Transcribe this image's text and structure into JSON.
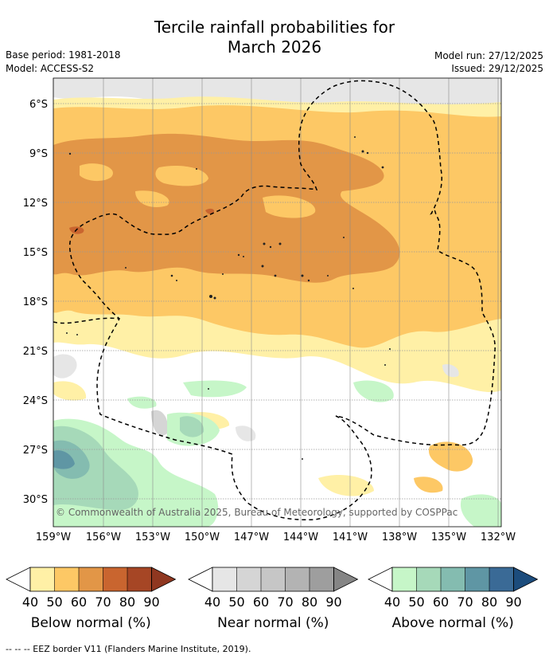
{
  "header": {
    "title_line1": "Tercile rainfall probabilities for",
    "title_line2": "March 2026",
    "base_period": "Base period: 1981-2018",
    "model": "Model: ACCESS-S2",
    "model_run": "Model run: 27/12/2025",
    "issued": "Issued: 29/12/2025"
  },
  "map": {
    "lat_labels": [
      "6°S",
      "9°S",
      "12°S",
      "15°S",
      "18°S",
      "21°S",
      "24°S",
      "27°S",
      "30°S"
    ],
    "lon_labels": [
      "159°W",
      "156°W",
      "153°W",
      "150°W",
      "147°W",
      "144°W",
      "141°W",
      "138°W",
      "135°W",
      "132°W"
    ],
    "copyright": "© Commonwealth of Australia 2025, Bureau of Meteorology, supported by COSPPac"
  },
  "colorbars": [
    {
      "title": "Below normal (%)",
      "ticks": [
        "40",
        "50",
        "60",
        "70",
        "80",
        "90"
      ],
      "colors": [
        "#fff0a6",
        "#fdc865",
        "#e29647",
        "#c9652f",
        "#a64625",
        "#8f3720"
      ]
    },
    {
      "title": "Near normal (%)",
      "ticks": [
        "40",
        "50",
        "60",
        "70",
        "80",
        "90"
      ],
      "colors": [
        "#e6e6e6",
        "#d5d5d5",
        "#c6c6c6",
        "#b3b3b3",
        "#9e9e9e",
        "#858585"
      ]
    },
    {
      "title": "Above normal (%)",
      "ticks": [
        "40",
        "50",
        "60",
        "70",
        "80",
        "90"
      ],
      "colors": [
        "#c6f6c8",
        "#a6d9b9",
        "#84bcb0",
        "#5f96a4",
        "#3a6a96",
        "#1c4c7c"
      ]
    }
  ],
  "footnote": "--  --  -- EEZ border V11 (Flanders Marine Institute, 2019)."
}
